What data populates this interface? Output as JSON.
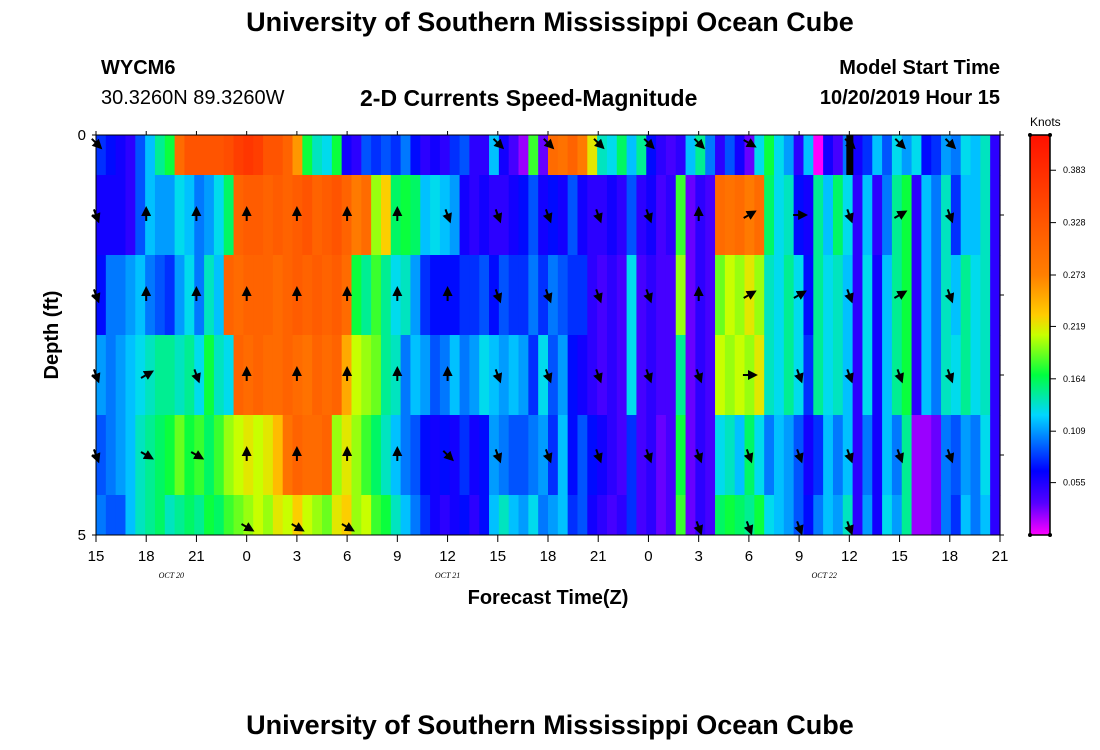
{
  "header": {
    "title_top": "University of Southern Mississippi Ocean Cube",
    "station_id": "WYCM6",
    "coordinates": "30.3260N 89.3260W",
    "model_start_label": "Model Start Time",
    "model_start_value": "10/20/2019 Hour 15"
  },
  "footer": {
    "title_bottom": "University of Southern Mississippi Ocean Cube"
  },
  "chart_data": {
    "type": "heatmap",
    "title": "2-D Currents Speed-Magnitude",
    "xlabel": "Forecast Time(Z)",
    "ylabel": "Depth (ft)",
    "x_tick_labels": [
      "15",
      "18",
      "21",
      "0",
      "3",
      "6",
      "9",
      "12",
      "15",
      "18",
      "21",
      "0",
      "3",
      "6",
      "9",
      "12",
      "15",
      "18",
      "21"
    ],
    "x_range_hours": [
      0,
      54
    ],
    "date_labels": [
      {
        "text": "OCT 20",
        "hour": 4.5
      },
      {
        "text": "OCT 21",
        "hour": 21
      },
      {
        "text": "OCT 22",
        "hour": 43.5
      }
    ],
    "y_tick_labels": [
      "0",
      "",
      "",
      "",
      "",
      "5"
    ],
    "y_range": [
      0,
      5
    ],
    "colorbar": {
      "label": "Knots",
      "range": [
        0,
        0.42
      ],
      "ticks": [
        0.055,
        0.109,
        0.164,
        0.219,
        0.273,
        0.328,
        0.383
      ]
    },
    "depth_rows": [
      0.25,
      1.0,
      2.0,
      3.0,
      4.0,
      4.75
    ],
    "speed_grid": [
      [
        0.08,
        0.07,
        0.06,
        0.05,
        0.09,
        0.12,
        0.15,
        0.17,
        0.3,
        0.33,
        0.33,
        0.33,
        0.33,
        0.34,
        0.36,
        0.37,
        0.36,
        0.33,
        0.33,
        0.31,
        0.26,
        0.17,
        0.14,
        0.13,
        0.17,
        0.06,
        0.05,
        0.09,
        0.08,
        0.09,
        0.08,
        0.1,
        0.07,
        0.05,
        0.06,
        0.05,
        0.08,
        0.09,
        0.05,
        0.05,
        0.12,
        0.06,
        0.04,
        0.02,
        0.18,
        0.03,
        0.3,
        0.29,
        0.31,
        0.28,
        0.22,
        0.14,
        0.13,
        0.16,
        0.12,
        0.15,
        0.07,
        0.05,
        0.04,
        0.05,
        0.12,
        0.15,
        0.1,
        0.05,
        0.09,
        0.06,
        0.03,
        0.13,
        0.17,
        0.13,
        0.11,
        0.05,
        0.12,
        0.0,
        0.06,
        0.04,
        0.1,
        0.06,
        0.08,
        0.12,
        0.09,
        0.13,
        0.11,
        0.13,
        0.07,
        0.08,
        0.11,
        0.1,
        0.13,
        0.12,
        0.14,
        0.05
      ],
      [
        0.06,
        0.06,
        0.06,
        0.05,
        0.09,
        0.12,
        0.11,
        0.11,
        0.13,
        0.12,
        0.1,
        0.11,
        0.13,
        0.16,
        0.31,
        0.32,
        0.32,
        0.31,
        0.32,
        0.31,
        0.32,
        0.33,
        0.31,
        0.32,
        0.33,
        0.31,
        0.28,
        0.3,
        0.2,
        0.23,
        0.16,
        0.17,
        0.16,
        0.12,
        0.13,
        0.12,
        0.11,
        0.06,
        0.05,
        0.06,
        0.05,
        0.05,
        0.06,
        0.07,
        0.09,
        0.06,
        0.07,
        0.06,
        0.09,
        0.06,
        0.05,
        0.05,
        0.06,
        0.05,
        0.09,
        0.05,
        0.06,
        0.04,
        0.05,
        0.18,
        0.03,
        0.05,
        0.04,
        0.3,
        0.29,
        0.3,
        0.28,
        0.3,
        0.16,
        0.13,
        0.14,
        0.07,
        0.06,
        0.15,
        0.12,
        0.16,
        0.13,
        0.05,
        0.12,
        0.05,
        0.1,
        0.15,
        0.17,
        0.05,
        0.12,
        0.1,
        0.14,
        0.08,
        0.12,
        0.12,
        0.14,
        0.05
      ],
      [
        0.07,
        0.1,
        0.1,
        0.11,
        0.12,
        0.1,
        0.09,
        0.08,
        0.11,
        0.13,
        0.1,
        0.14,
        0.12,
        0.31,
        0.3,
        0.31,
        0.31,
        0.31,
        0.3,
        0.31,
        0.32,
        0.31,
        0.32,
        0.31,
        0.32,
        0.3,
        0.17,
        0.15,
        0.18,
        0.15,
        0.13,
        0.14,
        0.11,
        0.08,
        0.07,
        0.07,
        0.07,
        0.08,
        0.08,
        0.09,
        0.07,
        0.09,
        0.08,
        0.08,
        0.1,
        0.08,
        0.1,
        0.09,
        0.08,
        0.08,
        0.05,
        0.04,
        0.05,
        0.04,
        0.13,
        0.04,
        0.05,
        0.04,
        0.04,
        0.2,
        0.03,
        0.05,
        0.04,
        0.19,
        0.21,
        0.2,
        0.22,
        0.2,
        0.14,
        0.13,
        0.15,
        0.13,
        0.07,
        0.15,
        0.13,
        0.14,
        0.12,
        0.05,
        0.13,
        0.06,
        0.12,
        0.15,
        0.17,
        0.05,
        0.12,
        0.1,
        0.14,
        0.12,
        0.15,
        0.13,
        0.14,
        0.05
      ],
      [
        0.11,
        0.1,
        0.11,
        0.12,
        0.13,
        0.14,
        0.15,
        0.15,
        0.14,
        0.15,
        0.13,
        0.17,
        0.14,
        0.13,
        0.31,
        0.3,
        0.31,
        0.3,
        0.3,
        0.31,
        0.3,
        0.29,
        0.31,
        0.3,
        0.31,
        0.25,
        0.21,
        0.2,
        0.19,
        0.15,
        0.14,
        0.1,
        0.12,
        0.11,
        0.09,
        0.1,
        0.12,
        0.1,
        0.11,
        0.13,
        0.12,
        0.11,
        0.12,
        0.11,
        0.08,
        0.13,
        0.09,
        0.11,
        0.07,
        0.06,
        0.05,
        0.04,
        0.05,
        0.04,
        0.13,
        0.04,
        0.05,
        0.04,
        0.04,
        0.15,
        0.03,
        0.05,
        0.04,
        0.21,
        0.2,
        0.21,
        0.2,
        0.22,
        0.14,
        0.13,
        0.15,
        0.13,
        0.08,
        0.15,
        0.13,
        0.14,
        0.12,
        0.05,
        0.13,
        0.06,
        0.12,
        0.15,
        0.17,
        0.05,
        0.12,
        0.1,
        0.14,
        0.13,
        0.15,
        0.13,
        0.14,
        0.05
      ],
      [
        0.09,
        0.1,
        0.11,
        0.12,
        0.14,
        0.15,
        0.16,
        0.17,
        0.19,
        0.17,
        0.18,
        0.16,
        0.18,
        0.2,
        0.21,
        0.22,
        0.21,
        0.22,
        0.24,
        0.29,
        0.31,
        0.3,
        0.3,
        0.31,
        0.2,
        0.22,
        0.2,
        0.18,
        0.16,
        0.14,
        0.12,
        0.1,
        0.09,
        0.07,
        0.06,
        0.07,
        0.06,
        0.08,
        0.06,
        0.07,
        0.11,
        0.1,
        0.09,
        0.09,
        0.1,
        0.11,
        0.08,
        0.12,
        0.07,
        0.09,
        0.07,
        0.06,
        0.05,
        0.04,
        0.08,
        0.04,
        0.05,
        0.03,
        0.04,
        0.17,
        0.03,
        0.05,
        0.04,
        0.13,
        0.14,
        0.12,
        0.16,
        0.13,
        0.1,
        0.12,
        0.11,
        0.09,
        0.06,
        0.08,
        0.12,
        0.1,
        0.12,
        0.05,
        0.1,
        0.06,
        0.12,
        0.1,
        0.15,
        0.02,
        0.02,
        0.03,
        0.1,
        0.09,
        0.11,
        0.1,
        0.13,
        0.05
      ],
      [
        0.1,
        0.09,
        0.09,
        0.12,
        0.14,
        0.15,
        0.16,
        0.14,
        0.15,
        0.16,
        0.15,
        0.17,
        0.16,
        0.18,
        0.19,
        0.2,
        0.21,
        0.2,
        0.22,
        0.21,
        0.23,
        0.21,
        0.2,
        0.19,
        0.22,
        0.23,
        0.2,
        0.21,
        0.18,
        0.17,
        0.14,
        0.12,
        0.1,
        0.08,
        0.06,
        0.05,
        0.06,
        0.07,
        0.05,
        0.07,
        0.12,
        0.14,
        0.12,
        0.11,
        0.13,
        0.1,
        0.11,
        0.12,
        0.08,
        0.09,
        0.06,
        0.05,
        0.04,
        0.05,
        0.08,
        0.04,
        0.05,
        0.03,
        0.04,
        0.18,
        0.03,
        0.05,
        0.04,
        0.16,
        0.17,
        0.16,
        0.15,
        0.17,
        0.13,
        0.12,
        0.11,
        0.09,
        0.07,
        0.1,
        0.12,
        0.11,
        0.14,
        0.05,
        0.11,
        0.06,
        0.13,
        0.11,
        0.15,
        0.02,
        0.02,
        0.03,
        0.1,
        0.08,
        0.12,
        0.1,
        0.12,
        0.05
      ]
    ],
    "black_cell": {
      "hour": 45,
      "row": 0
    },
    "arrow_hours": [
      0,
      3,
      6,
      9,
      12,
      15,
      18,
      21,
      24,
      27,
      30,
      33,
      36,
      39,
      42,
      45,
      48,
      51
    ],
    "arrow_directions_deg": [
      [
        135,
        null,
        null,
        null,
        null,
        null,
        null,
        null,
        135,
        135,
        135,
        135,
        135,
        120,
        null,
        135,
        135,
        135
      ],
      [
        160,
        0,
        0,
        0,
        0,
        0,
        0,
        160,
        160,
        160,
        160,
        160,
        0,
        60,
        90,
        160,
        60,
        160
      ],
      [
        160,
        0,
        0,
        0,
        0,
        0,
        0,
        0,
        160,
        160,
        160,
        160,
        0,
        60,
        60,
        160,
        60,
        160
      ],
      [
        160,
        60,
        160,
        0,
        0,
        0,
        0,
        0,
        160,
        160,
        160,
        160,
        160,
        90,
        160,
        160,
        160,
        160
      ],
      [
        160,
        120,
        120,
        0,
        0,
        0,
        0,
        135,
        160,
        160,
        160,
        160,
        160,
        160,
        160,
        160,
        160,
        160
      ],
      [
        null,
        null,
        null,
        120,
        120,
        120,
        null,
        null,
        null,
        null,
        null,
        null,
        160,
        160,
        160,
        160,
        null,
        null
      ]
    ],
    "arrow_depth_rows": [
      0.1,
      1.0,
      2.0,
      3.0,
      4.0,
      4.9
    ]
  }
}
